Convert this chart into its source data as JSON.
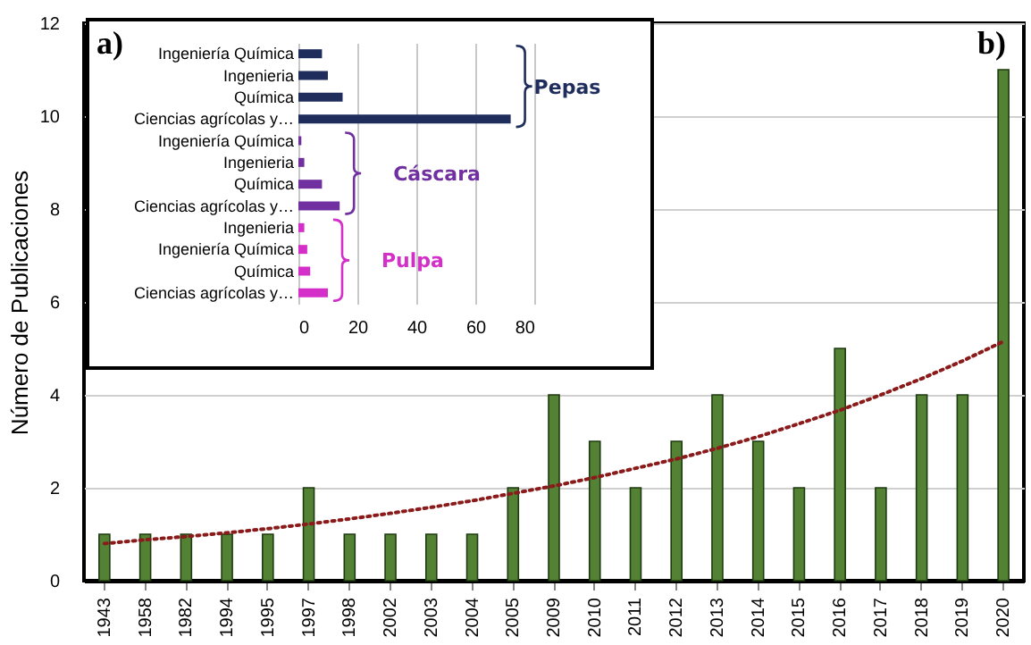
{
  "chart_data": [
    {
      "type": "bar",
      "ylabel": "Número de Publicaciones",
      "categories": [
        "1943",
        "1958",
        "1982",
        "1994",
        "1995",
        "1997",
        "1998",
        "2002",
        "2003",
        "2004",
        "2005",
        "2009",
        "2010",
        "2011",
        "2012",
        "2013",
        "2014",
        "2015",
        "2016",
        "2017",
        "2018",
        "2019",
        "2020"
      ],
      "series": [
        {
          "color": "#548235",
          "values": [
            1,
            1,
            1,
            1,
            1,
            2,
            1,
            1,
            1,
            1,
            2,
            4,
            3,
            2,
            3,
            4,
            3,
            2,
            5,
            2,
            4,
            4,
            11
          ]
        },
        {
          "type": "line",
          "color": "#8b1a1a",
          "line_style": "dotted",
          "values": [
            0.8,
            0.88,
            0.95,
            1.03,
            1.12,
            1.22,
            1.33,
            1.45,
            1.58,
            1.72,
            1.88,
            2.04,
            2.22,
            2.42,
            2.62,
            2.85,
            3.1,
            3.38,
            3.67,
            4.0,
            4.35,
            4.73,
            5.15
          ]
        }
      ],
      "ylim": [
        0,
        12
      ],
      "yticks": [
        0,
        2,
        4,
        6,
        8,
        10,
        12
      ],
      "grid": "y",
      "legend": false,
      "annotations": [
        "b)"
      ]
    },
    {
      "type": "bar",
      "orientation": "horizontal",
      "categories": [
        "Ingeniería Química",
        "Ingenieria",
        "Química",
        "Ciencias agrícolas y…",
        "Ingeniería Química",
        "Ingenieria",
        "Química",
        "Ciencias agrícolas y…",
        "Ingenieria",
        "Ingeniería Química",
        "Química",
        "Ciencias agrícolas y…"
      ],
      "series": [
        {
          "name": "Pepas",
          "color": "#1f2d5c",
          "values": [
            8,
            10,
            15,
            72,
            null,
            null,
            null,
            null,
            null,
            null,
            null,
            null
          ]
        },
        {
          "name": "Cáscara",
          "color": "#7030a0",
          "values": [
            null,
            null,
            null,
            null,
            1,
            2,
            8,
            14,
            null,
            null,
            null,
            null
          ]
        },
        {
          "name": "Pulpa",
          "color": "#d42fc8",
          "values": [
            null,
            null,
            null,
            null,
            null,
            null,
            null,
            null,
            2,
            3,
            4,
            10
          ]
        }
      ],
      "xlim": [
        0,
        80
      ],
      "xticks": [
        0,
        20,
        40,
        60,
        80
      ],
      "grid": "x",
      "legend": false,
      "annotations": [
        "a)"
      ]
    }
  ]
}
